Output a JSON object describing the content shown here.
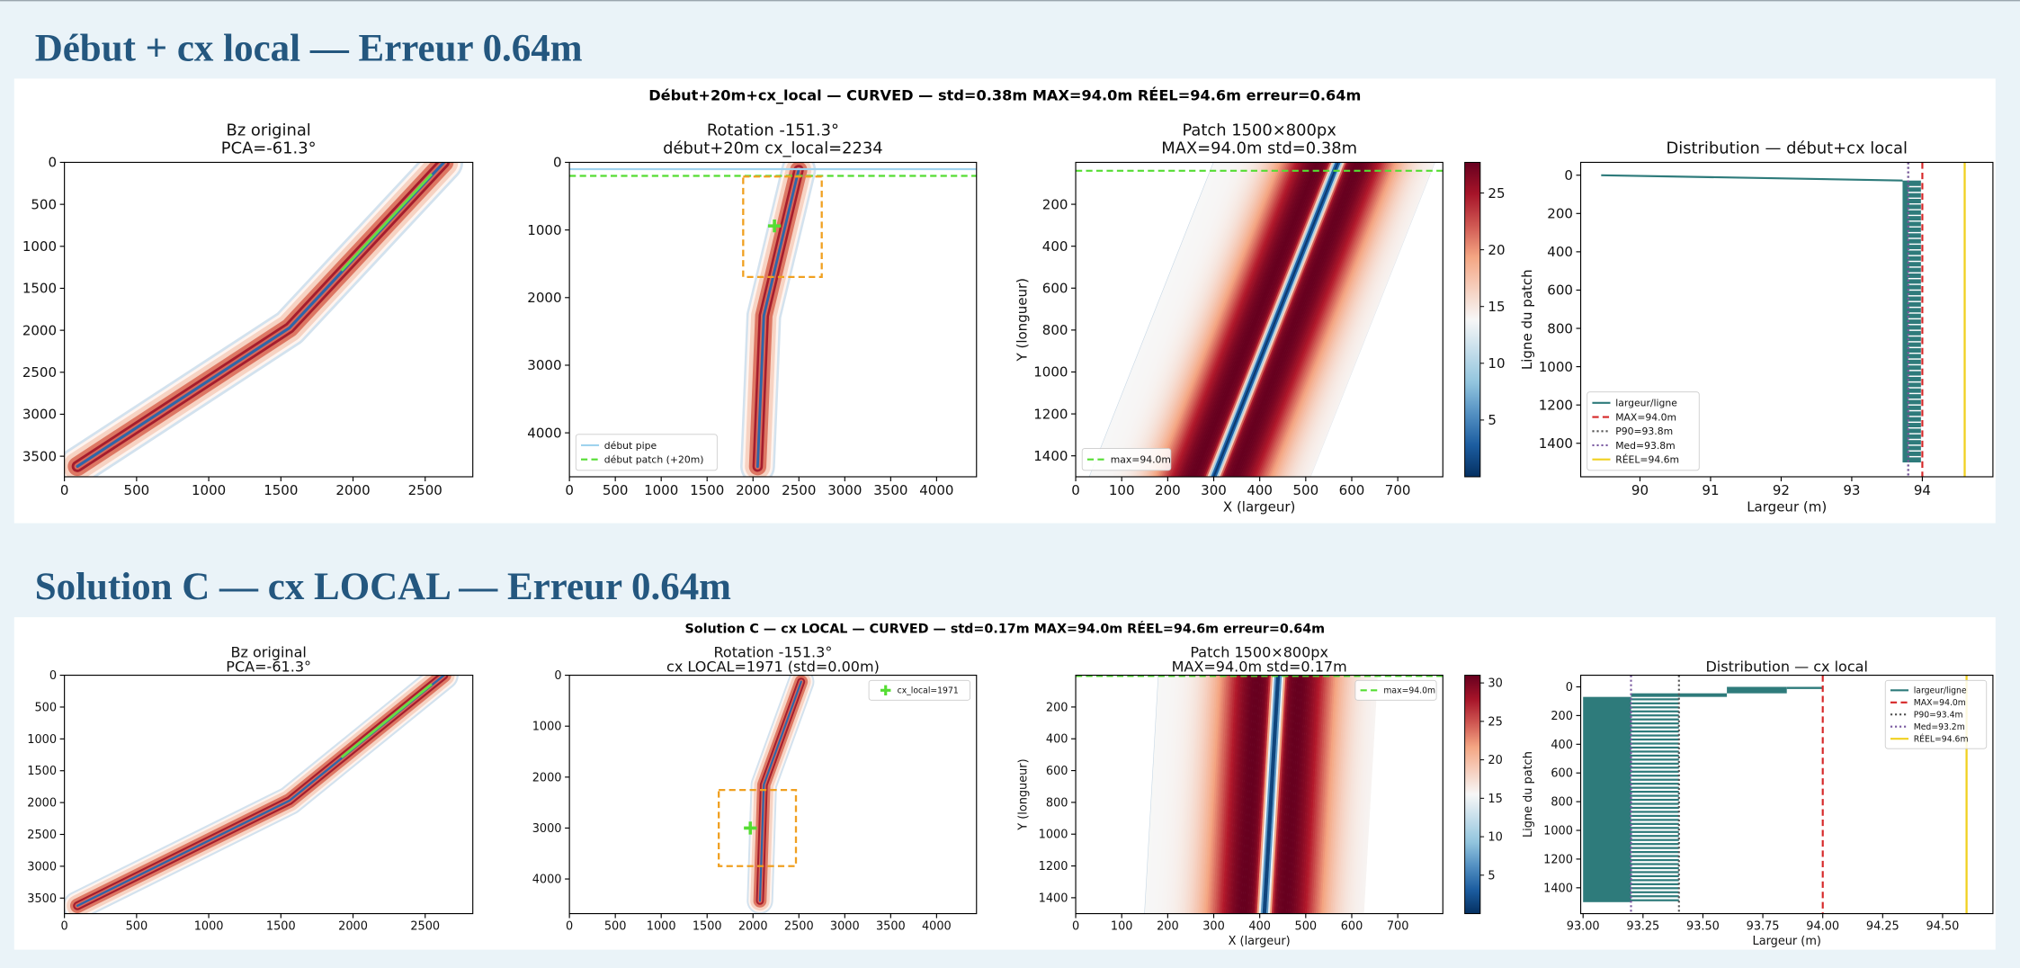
{
  "sections": [
    {
      "heading": "Début + cx local — Erreur 0.64m",
      "figure_title": "Début+20m+cx_local — CURVED — std=0.38m  MAX=94.0m  RÉEL=94.6m  erreur=0.64m",
      "panels": [
        {
          "type": "image",
          "title": [
            "Bz original",
            "PCA=-61.3°"
          ],
          "xlim": [
            0,
            2830
          ],
          "ylim": [
            3745,
            0
          ],
          "xticks": [
            0,
            500,
            1000,
            1500,
            2000,
            2500
          ],
          "yticks": [
            0,
            500,
            1000,
            1500,
            2000,
            2500,
            3000,
            3500
          ]
        },
        {
          "type": "rotation",
          "title": [
            "Rotation -151.3°",
            "début+20m  cx_local=2234"
          ],
          "xlim": [
            0,
            4435
          ],
          "ylim": [
            4650,
            0
          ],
          "xticks": [
            0,
            500,
            1000,
            1500,
            2000,
            2500,
            3000,
            3500,
            4000
          ],
          "yticks": [
            0,
            1000,
            2000,
            3000,
            4000
          ],
          "legend_loc": "lower left",
          "legend": [
            {
              "name": "début pipe",
              "color": "#9fd3ee",
              "style": "solid"
            },
            {
              "name": "début patch (+20m)",
              "color": "#55dd33",
              "style": "dashed"
            }
          ]
        },
        {
          "type": "patch",
          "title": [
            "Patch 1500×800px",
            "MAX=94.0m  std=0.38m"
          ],
          "xlabel": "X (largeur)",
          "ylabel": "Y (longueur)",
          "xlim": [
            0,
            798
          ],
          "ylim": [
            1500,
            0
          ],
          "xticks": [
            0,
            100,
            200,
            300,
            400,
            500,
            600,
            700
          ],
          "yticks": [
            200,
            400,
            600,
            800,
            1000,
            1200,
            1400
          ],
          "legend_loc": "lower left",
          "legend": [
            {
              "name": "max=94.0m",
              "color": "#55dd33",
              "style": "dashed"
            }
          ],
          "colorbar_lim": [
            0,
            27.7
          ],
          "colorbar_ticks": [
            5,
            10,
            15,
            20,
            25
          ]
        },
        {
          "type": "distribution",
          "title": [
            "Distribution — début+cx local"
          ],
          "xlabel": "Largeur (m)",
          "ylabel": "Ligne du patch",
          "xlim": [
            89.16,
            95.0
          ],
          "ylim": [
            1575,
            -67
          ],
          "xticks": [
            90,
            91,
            92,
            93,
            94
          ],
          "yticks": [
            0,
            200,
            400,
            600,
            800,
            1000,
            1200,
            1400
          ],
          "legend_loc": "lower left",
          "bars_name": "largeur/ligne",
          "bars_color": "#2e7b7b",
          "series": [
            {
              "name": "MAX=94.0m",
              "value": 94.0,
              "color": "#d62728",
              "style": "dashed"
            },
            {
              "name": "P90=93.8m",
              "value": 93.8,
              "color": "#555555",
              "style": "dotted"
            },
            {
              "name": "Med=93.8m",
              "value": 93.8,
              "color": "#7a5aa0",
              "style": "dotted"
            },
            {
              "name": "RÉEL=94.6m",
              "value": 94.6,
              "color": "#f0d020",
              "style": "solid"
            }
          ]
        }
      ]
    },
    {
      "heading": "Solution C — cx LOCAL — Erreur 0.64m",
      "figure_title": "Solution C — cx LOCAL — CURVED — std=0.17m  MAX=94.0m  RÉEL=94.6m  erreur=0.64m",
      "panels": [
        {
          "type": "image",
          "title": [
            "Bz original",
            "PCA=-61.3°"
          ],
          "xlim": [
            0,
            2830
          ],
          "ylim": [
            3744,
            0
          ],
          "xticks": [
            0,
            500,
            1000,
            1500,
            2000,
            2500
          ],
          "yticks": [
            0,
            500,
            1000,
            1500,
            2000,
            2500,
            3000,
            3500
          ]
        },
        {
          "type": "rotation",
          "title": [
            "Rotation -151.3°",
            "cx LOCAL=1971 (std=0.00m)"
          ],
          "xlim": [
            0,
            4435
          ],
          "ylim": [
            4680,
            0
          ],
          "xticks": [
            0,
            500,
            1000,
            1500,
            2000,
            2500,
            3000,
            3500,
            4000
          ],
          "yticks": [
            0,
            1000,
            2000,
            3000,
            4000
          ],
          "legend_loc": "upper right",
          "legend": [
            {
              "name": "cx_local=1971",
              "color": "#55dd33",
              "style": "plus"
            }
          ]
        },
        {
          "type": "patch",
          "title": [
            "Patch 1500×800px",
            "MAX=94.0m  std=0.17m"
          ],
          "xlabel": "X (largeur)",
          "ylabel": "Y (longueur)",
          "xlim": [
            0,
            798
          ],
          "ylim": [
            1500,
            0
          ],
          "xticks": [
            0,
            100,
            200,
            300,
            400,
            500,
            600,
            700
          ],
          "yticks": [
            200,
            400,
            600,
            800,
            1000,
            1200,
            1400
          ],
          "legend_loc": "upper right",
          "legend": [
            {
              "name": "max=94.0m",
              "color": "#55dd33",
              "style": "dashed"
            }
          ],
          "colorbar_lim": [
            0,
            31
          ],
          "colorbar_ticks": [
            5,
            10,
            15,
            20,
            25,
            30
          ]
        },
        {
          "type": "distribution",
          "title": [
            "Distribution — cx local"
          ],
          "xlabel": "Largeur (m)",
          "ylabel": "Ligne du patch",
          "xlim": [
            92.99,
            94.71
          ],
          "ylim": [
            1580,
            -81
          ],
          "xticks": [
            {
              "value": 93,
              "label": "93.00"
            },
            {
              "value": 93.25,
              "label": "93.25"
            },
            {
              "value": 93.5,
              "label": "93.50"
            },
            {
              "value": 93.75,
              "label": "93.75"
            },
            {
              "value": 94,
              "label": "94.00"
            },
            {
              "value": 94.25,
              "label": "94.25"
            },
            {
              "value": 94.5,
              "label": "94.50"
            }
          ],
          "yticks": [
            0,
            200,
            400,
            600,
            800,
            1000,
            1200,
            1400
          ],
          "legend_loc": "upper right",
          "bars_name": "largeur/ligne",
          "bars_color": "#2e7b7b",
          "series": [
            {
              "name": "MAX=94.0m",
              "value": 94.0,
              "color": "#d62728",
              "style": "dashed"
            },
            {
              "name": "P90=93.4m",
              "value": 93.4,
              "color": "#555555",
              "style": "dotted"
            },
            {
              "name": "Med=93.2m",
              "value": 93.2,
              "color": "#7a5aa0",
              "style": "dotted"
            },
            {
              "name": "RÉEL=94.6m",
              "value": 94.6,
              "color": "#f0d020",
              "style": "solid"
            }
          ]
        }
      ]
    }
  ]
}
